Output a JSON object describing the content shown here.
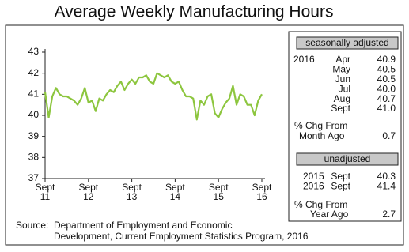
{
  "chart_data": {
    "type": "line",
    "title": "Average Weekly Manufacturing Hours",
    "categories": [
      "Sept 11",
      null,
      null,
      null,
      null,
      null,
      null,
      null,
      null,
      null,
      null,
      null,
      "Sept 12",
      null,
      null,
      null,
      null,
      null,
      null,
      null,
      null,
      null,
      null,
      null,
      "Sept 13",
      null,
      null,
      null,
      null,
      null,
      null,
      null,
      null,
      null,
      null,
      null,
      "Sept 14",
      null,
      null,
      null,
      null,
      null,
      null,
      null,
      null,
      null,
      null,
      null,
      "Sept 15",
      null,
      null,
      null,
      null,
      null,
      null,
      null,
      null,
      null,
      null,
      null,
      "Sept 16"
    ],
    "values": [
      41.1,
      39.9,
      40.9,
      41.3,
      41.0,
      40.9,
      40.9,
      40.8,
      40.7,
      40.5,
      40.8,
      41.3,
      40.6,
      40.7,
      40.2,
      40.8,
      40.7,
      41.0,
      41.2,
      41.1,
      41.4,
      41.6,
      41.2,
      41.5,
      41.7,
      41.5,
      41.8,
      41.8,
      41.9,
      41.6,
      41.5,
      42.0,
      41.9,
      41.8,
      41.9,
      41.6,
      41.5,
      41.6,
      41.2,
      40.9,
      40.9,
      40.8,
      39.8,
      40.7,
      40.5,
      40.9,
      41.0,
      40.1,
      39.9,
      40.3,
      40.6,
      40.8,
      41.4,
      40.5,
      41.0,
      40.9,
      40.5,
      40.5,
      40.0,
      40.7,
      41.0
    ],
    "color": "#8dc63f",
    "ylim": [
      37,
      43
    ],
    "yticks": [
      37,
      38,
      39,
      40,
      41,
      42,
      43
    ]
  },
  "panel": {
    "seasonally_adjusted": {
      "header": "seasonally adjusted",
      "year": "2016",
      "rows": [
        [
          "Apr",
          "40.9"
        ],
        [
          "May",
          "40.5"
        ],
        [
          "Jun",
          "40.5"
        ],
        [
          "Jul",
          "40.0"
        ],
        [
          "Aug",
          "40.7"
        ],
        [
          "Sept",
          "41.0"
        ]
      ],
      "chg_label": [
        "% Chg From",
        "Month Ago"
      ],
      "chg_value": "0.7"
    },
    "unadjusted": {
      "header": "unadjusted",
      "rows": [
        [
          "2015",
          "Sept",
          "40.3"
        ],
        [
          "2016",
          "Sept",
          "41.4"
        ]
      ],
      "chg_label": [
        "% Chg From",
        "Year Ago"
      ],
      "chg_value": "2.7"
    }
  },
  "source": [
    "Source:",
    "Department of Employment and Economic",
    "Development, Current Employment Statistics Program, 2016"
  ]
}
